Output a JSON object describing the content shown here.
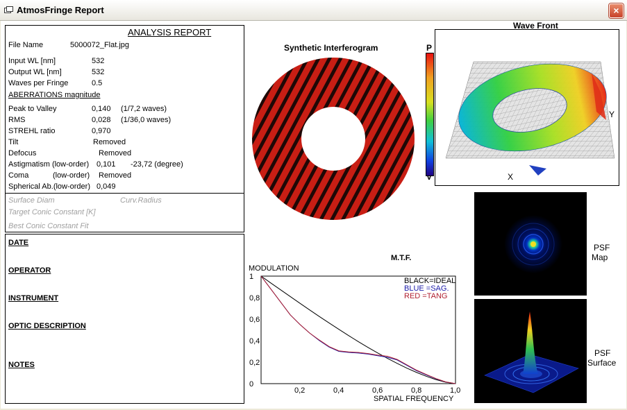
{
  "window": {
    "title": "AtmosFringe  Report",
    "close_label": "×"
  },
  "report": {
    "title": "ANALYSIS  REPORT",
    "file_label": "File Name",
    "file_value": "5000072_Flat.jpg",
    "input_wl_label": "Input  WL [nm]",
    "input_wl_value": "532",
    "output_wl_label": "Output WL [nm]",
    "output_wl_value": "532",
    "wpf_label": "Waves per Fringe",
    "wpf_value": "0.5",
    "aberr_header": "ABERRATIONS magnitude",
    "ptv_label": "Peak to Valley",
    "ptv_value": "0,140",
    "ptv_waves": "(1/7,2 waves)",
    "rms_label": "RMS",
    "rms_value": "0,028",
    "rms_waves": "(1/36,0 waves)",
    "strehl_label": "STREHL ratio",
    "strehl_value": "0,970",
    "tilt_label": "Tilt",
    "tilt_value": "Removed",
    "defocus_label": "Defocus",
    "defocus_value": "Removed",
    "astig_label": "Astigmatism  (low-order)",
    "astig_value": "0,101",
    "astig_angle": "-23,72  (degree)",
    "coma_label": "Coma",
    "coma_order": "(low-order)",
    "coma_value": "Removed",
    "sph_label": "Spherical Ab.(low-order)",
    "sph_value": "0,049",
    "surface_diam": "Surface Diam",
    "curv_radius": "Curv.Radius",
    "target_conic": "Target Conic Constant [K]",
    "best_conic": "Best Conic Constant Fit"
  },
  "notes": {
    "date": "DATE",
    "operator": "OPERATOR",
    "instrument": "INSTRUMENT",
    "optic": "OPTIC DESCRIPTION",
    "notes": "NOTES"
  },
  "interferogram": {
    "title": "Synthetic Interferogram",
    "fringe_color": "#c81e14",
    "stripe_color": "#1e0806"
  },
  "wavefront": {
    "title": "Wave Front",
    "axis_x": "X",
    "axis_y": "Y",
    "scale_top": "P",
    "scale_bottom": "V"
  },
  "psf": {
    "map_label_1": "PSF",
    "map_label_2": "Map",
    "surface_label_1": "PSF",
    "surface_label_2": "Surface"
  },
  "chart_data": {
    "type": "line",
    "title": "M.T.F.",
    "ylabel": "MODULATION",
    "xlabel": "SPATIAL FREQUENCY",
    "xlim": [
      0,
      1
    ],
    "ylim": [
      0,
      1
    ],
    "x_ticks": [
      "0,2",
      "0,4",
      "0,6",
      "0,8",
      "1,0"
    ],
    "y_ticks": [
      "0",
      "0,2",
      "0,4",
      "0,6",
      "0,8",
      "1"
    ],
    "legend": [
      "BLACK=IDEAL",
      "BLUE  =SAG.",
      "RED    =TANG"
    ],
    "legend_position": "top-right",
    "x": [
      0,
      0.05,
      0.1,
      0.15,
      0.2,
      0.25,
      0.3,
      0.35,
      0.4,
      0.45,
      0.5,
      0.55,
      0.6,
      0.65,
      0.7,
      0.75,
      0.8,
      0.85,
      0.9,
      0.95,
      1.0
    ],
    "series": [
      {
        "name": "IDEAL",
        "color": "#000000",
        "values": [
          1.0,
          0.936,
          0.873,
          0.81,
          0.747,
          0.685,
          0.624,
          0.564,
          0.505,
          0.447,
          0.391,
          0.337,
          0.285,
          0.235,
          0.188,
          0.144,
          0.104,
          0.068,
          0.037,
          0.013,
          0.0
        ]
      },
      {
        "name": "SAG.",
        "color": "#1a1aa8",
        "values": [
          1.0,
          0.88,
          0.76,
          0.64,
          0.55,
          0.47,
          0.4,
          0.34,
          0.3,
          0.29,
          0.285,
          0.275,
          0.26,
          0.245,
          0.22,
          0.17,
          0.12,
          0.08,
          0.045,
          0.015,
          0.0
        ]
      },
      {
        "name": "TANG",
        "color": "#b02030",
        "values": [
          1.0,
          0.88,
          0.76,
          0.64,
          0.55,
          0.47,
          0.405,
          0.345,
          0.305,
          0.295,
          0.29,
          0.28,
          0.265,
          0.255,
          0.225,
          0.175,
          0.125,
          0.085,
          0.047,
          0.016,
          0.0
        ]
      }
    ]
  }
}
